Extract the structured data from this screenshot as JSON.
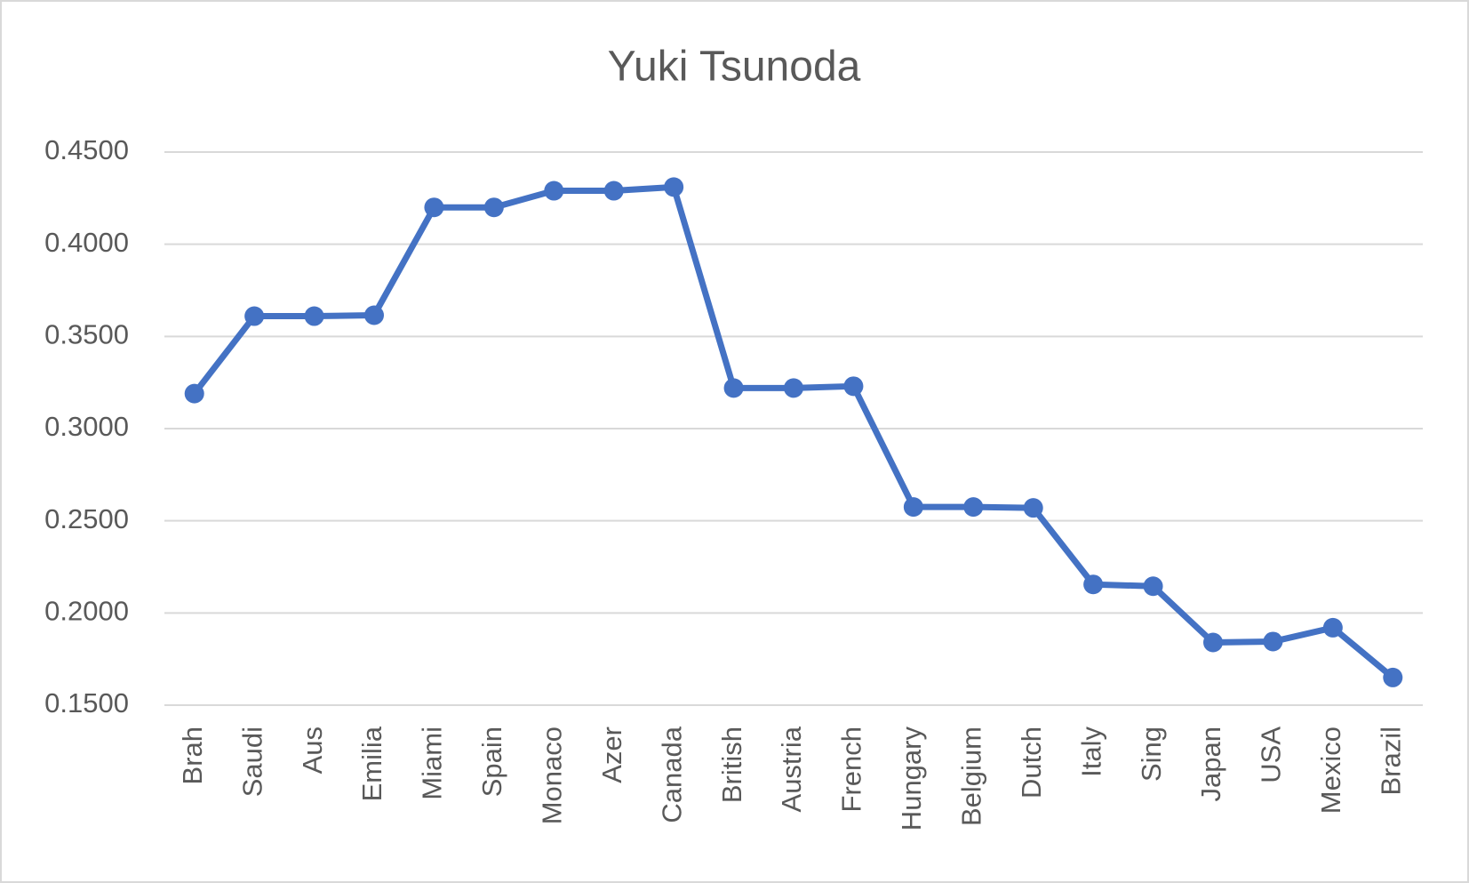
{
  "chart_data": {
    "type": "line",
    "title": "Yuki Tsunoda",
    "categories": [
      "Brah",
      "Saudi",
      "Aus",
      "Emilia",
      "Miami",
      "Spain",
      "Monaco",
      "Azer",
      "Canada",
      "British",
      "Austria",
      "French",
      "Hungary",
      "Belgium",
      "Dutch",
      "Italy",
      "Sing",
      "Japan",
      "USA",
      "Mexico",
      "Brazil"
    ],
    "series": [
      {
        "name": "Yuki Tsunoda",
        "color": "#4472c4",
        "values": [
          0.319,
          0.361,
          0.361,
          0.3615,
          0.42,
          0.42,
          0.429,
          0.429,
          0.431,
          0.322,
          0.322,
          0.323,
          0.2575,
          0.2575,
          0.257,
          0.2155,
          0.2145,
          0.184,
          0.1845,
          0.192,
          0.165
        ]
      }
    ],
    "ylim": [
      0.15,
      0.45
    ],
    "yticks": [
      {
        "value": 0.15,
        "label": "0.1500"
      },
      {
        "value": 0.2,
        "label": "0.2000"
      },
      {
        "value": 0.25,
        "label": "0.2500"
      },
      {
        "value": 0.3,
        "label": "0.3000"
      },
      {
        "value": 0.35,
        "label": "0.3500"
      },
      {
        "value": 0.4,
        "label": "0.4000"
      },
      {
        "value": 0.45,
        "label": "0.4500"
      }
    ],
    "grid": true
  }
}
